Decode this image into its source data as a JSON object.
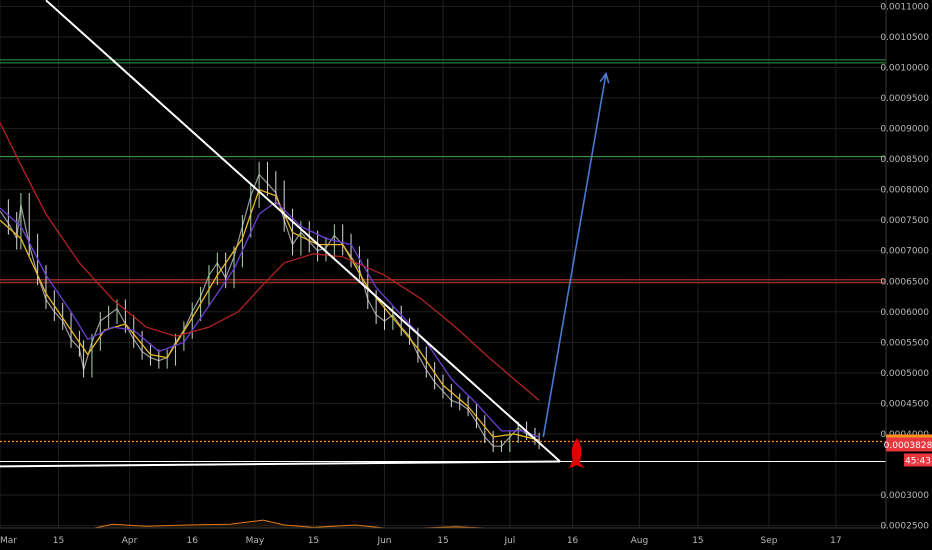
{
  "chart_data": {
    "type": "line",
    "y_axis": {
      "ylim": [
        0.00021,
        0.0011105
      ],
      "scale": "linear",
      "tick_labels": [
        "0.0011000",
        "0.0010500",
        "0.0010000",
        "0.0009500",
        "0.0009000",
        "0.0008500",
        "0.0008000",
        "0.0007500",
        "0.0007000",
        "0.0006500",
        "0.0006000",
        "0.0005500",
        "0.0005000",
        "0.0004500",
        "0.0004000",
        "0.0003000",
        "0.0002500"
      ],
      "tick_values": [
        0.0011,
        0.00105,
        0.001,
        0.00095,
        0.0009,
        0.00085,
        0.0008,
        0.00075,
        0.0007,
        0.00065,
        0.0006,
        0.00055,
        0.0005,
        0.00045,
        0.0004,
        0.0003,
        0.00025
      ],
      "grid": true
    },
    "x_axis": {
      "xlim": [
        "2018-03-01",
        "2018-09-29"
      ],
      "tick_labels": [
        "Mar",
        "15",
        "Apr",
        "16",
        "May",
        "15",
        "Jun",
        "15",
        "Jul",
        "16",
        "Aug",
        "15",
        "Sep",
        "17"
      ],
      "tick_dates": [
        "2018-03-01",
        "2018-03-15",
        "2018-04-01",
        "2018-04-16",
        "2018-05-01",
        "2018-05-15",
        "2018-06-01",
        "2018-06-15",
        "2018-07-01",
        "2018-07-16",
        "2018-08-01",
        "2018-08-15",
        "2018-09-01",
        "2018-09-17"
      ],
      "grid": true
    },
    "price_tags": [
      {
        "value": 0.0003877,
        "label": "0.0003877",
        "color": "#f7931a"
      },
      {
        "value": 0.0003828,
        "label": "0.0003828",
        "color": "#e8363c"
      },
      {
        "countdown": "45:43",
        "color": "#e8363c"
      }
    ],
    "horizontal_levels": [
      {
        "value": 0.00101,
        "color": "#2e9e3f",
        "double": true
      },
      {
        "value": 0.000854,
        "color": "#3ea84a",
        "double": false
      },
      {
        "value": 0.00065,
        "color": "#c0392b",
        "double": true
      },
      {
        "value": 0.0003877,
        "color": "#f7931a",
        "dotted": true
      },
      {
        "value": 0.000355,
        "color": "#ffffff",
        "double": false
      }
    ],
    "series": [
      {
        "style": "price",
        "color": "#9a9a9a",
        "points": [
          [
            "2018-03-01",
            0.000765
          ],
          [
            "2018-03-03",
            0.000745
          ],
          [
            "2018-03-05",
            0.00072
          ],
          [
            "2018-03-06",
            0.000775
          ],
          [
            "2018-03-08",
            0.00071
          ],
          [
            "2018-03-10",
            0.00066
          ],
          [
            "2018-03-12",
            0.00062
          ],
          [
            "2018-03-14",
            0.0006
          ],
          [
            "2018-03-16",
            0.000585
          ],
          [
            "2018-03-18",
            0.000555
          ],
          [
            "2018-03-20",
            0.00054
          ],
          [
            "2018-03-21",
            0.000505
          ],
          [
            "2018-03-23",
            0.00055
          ],
          [
            "2018-03-25",
            0.000585
          ],
          [
            "2018-03-27",
            0.000595
          ],
          [
            "2018-03-29",
            0.000605
          ],
          [
            "2018-03-31",
            0.00058
          ],
          [
            "2018-04-02",
            0.000555
          ],
          [
            "2018-04-04",
            0.000535
          ],
          [
            "2018-04-06",
            0.000525
          ],
          [
            "2018-04-08",
            0.00052
          ],
          [
            "2018-04-10",
            0.000525
          ],
          [
            "2018-04-12",
            0.00055
          ],
          [
            "2018-04-14",
            0.00057
          ],
          [
            "2018-04-16",
            0.0006
          ],
          [
            "2018-04-18",
            0.000625
          ],
          [
            "2018-04-20",
            0.00066
          ],
          [
            "2018-04-22",
            0.00068
          ],
          [
            "2018-04-24",
            0.000655
          ],
          [
            "2018-04-26",
            0.00069
          ],
          [
            "2018-04-28",
            0.00074
          ],
          [
            "2018-04-30",
            0.00079
          ],
          [
            "2018-05-02",
            0.000825
          ],
          [
            "2018-05-04",
            0.00081
          ],
          [
            "2018-05-06",
            0.000795
          ],
          [
            "2018-05-08",
            0.00075
          ],
          [
            "2018-05-10",
            0.00071
          ],
          [
            "2018-05-12",
            0.00073
          ],
          [
            "2018-05-14",
            0.000715
          ],
          [
            "2018-05-16",
            0.0007
          ],
          [
            "2018-05-18",
            0.000705
          ],
          [
            "2018-05-20",
            0.000725
          ],
          [
            "2018-05-22",
            0.00071
          ],
          [
            "2018-05-24",
            0.00069
          ],
          [
            "2018-05-26",
            0.00067
          ],
          [
            "2018-05-28",
            0.00062
          ],
          [
            "2018-05-30",
            0.000595
          ],
          [
            "2018-06-01",
            0.000585
          ],
          [
            "2018-06-03",
            0.000595
          ],
          [
            "2018-06-05",
            0.000575
          ],
          [
            "2018-06-07",
            0.00056
          ],
          [
            "2018-06-09",
            0.00053
          ],
          [
            "2018-06-11",
            0.000505
          ],
          [
            "2018-06-13",
            0.000485
          ],
          [
            "2018-06-15",
            0.00047
          ],
          [
            "2018-06-17",
            0.000455
          ],
          [
            "2018-06-19",
            0.00045
          ],
          [
            "2018-06-21",
            0.00044
          ],
          [
            "2018-06-23",
            0.00042
          ],
          [
            "2018-06-25",
            0.000395
          ],
          [
            "2018-06-27",
            0.00038
          ],
          [
            "2018-06-29",
            0.00038
          ],
          [
            "2018-07-01",
            0.000395
          ],
          [
            "2018-07-03",
            0.00041
          ],
          [
            "2018-07-05",
            0.0004
          ],
          [
            "2018-07-07",
            0.000392
          ],
          [
            "2018-07-08",
            0.000385
          ]
        ]
      },
      {
        "style": "moving-average",
        "color": "#e8b923",
        "points": [
          [
            "2018-03-01",
            0.00075
          ],
          [
            "2018-03-06",
            0.00072
          ],
          [
            "2018-03-12",
            0.00063
          ],
          [
            "2018-03-18",
            0.00057
          ],
          [
            "2018-03-22",
            0.00053
          ],
          [
            "2018-03-26",
            0.00057
          ],
          [
            "2018-03-31",
            0.00058
          ],
          [
            "2018-04-06",
            0.00053
          ],
          [
            "2018-04-10",
            0.000525
          ],
          [
            "2018-04-16",
            0.00059
          ],
          [
            "2018-04-22",
            0.00066
          ],
          [
            "2018-04-28",
            0.00072
          ],
          [
            "2018-05-02",
            0.0008
          ],
          [
            "2018-05-06",
            0.00079
          ],
          [
            "2018-05-10",
            0.00073
          ],
          [
            "2018-05-16",
            0.00071
          ],
          [
            "2018-05-22",
            0.00071
          ],
          [
            "2018-05-28",
            0.00064
          ],
          [
            "2018-06-03",
            0.00059
          ],
          [
            "2018-06-09",
            0.00054
          ],
          [
            "2018-06-15",
            0.00048
          ],
          [
            "2018-06-21",
            0.000445
          ],
          [
            "2018-06-27",
            0.000395
          ],
          [
            "2018-07-02",
            0.0004
          ],
          [
            "2018-07-08",
            0.00039
          ]
        ]
      },
      {
        "style": "moving-average",
        "color": "#6a3fd0",
        "points": [
          [
            "2018-03-01",
            0.00077
          ],
          [
            "2018-03-06",
            0.00074
          ],
          [
            "2018-03-12",
            0.00066
          ],
          [
            "2018-03-18",
            0.0006
          ],
          [
            "2018-03-22",
            0.000555
          ],
          [
            "2018-03-28",
            0.000575
          ],
          [
            "2018-04-02",
            0.00057
          ],
          [
            "2018-04-08",
            0.000535
          ],
          [
            "2018-04-14",
            0.00055
          ],
          [
            "2018-04-20",
            0.00061
          ],
          [
            "2018-04-26",
            0.00067
          ],
          [
            "2018-05-02",
            0.00076
          ],
          [
            "2018-05-06",
            0.00078
          ],
          [
            "2018-05-12",
            0.00074
          ],
          [
            "2018-05-18",
            0.00072
          ],
          [
            "2018-05-24",
            0.00071
          ],
          [
            "2018-05-30",
            0.00064
          ],
          [
            "2018-06-05",
            0.000595
          ],
          [
            "2018-06-11",
            0.00055
          ],
          [
            "2018-06-17",
            0.00049
          ],
          [
            "2018-06-23",
            0.00045
          ],
          [
            "2018-06-29",
            0.000405
          ],
          [
            "2018-07-04",
            0.000405
          ],
          [
            "2018-07-08",
            0.000395
          ]
        ]
      },
      {
        "style": "moving-average",
        "color": "#b22222",
        "points": [
          [
            "2018-03-01",
            0.00091
          ],
          [
            "2018-03-06",
            0.00084
          ],
          [
            "2018-03-12",
            0.00076
          ],
          [
            "2018-03-20",
            0.00068
          ],
          [
            "2018-03-28",
            0.00062
          ],
          [
            "2018-04-05",
            0.000575
          ],
          [
            "2018-04-12",
            0.00056
          ],
          [
            "2018-04-20",
            0.000575
          ],
          [
            "2018-04-27",
            0.0006
          ],
          [
            "2018-05-03",
            0.000645
          ],
          [
            "2018-05-08",
            0.00068
          ],
          [
            "2018-05-15",
            0.000695
          ],
          [
            "2018-05-22",
            0.00069
          ],
          [
            "2018-06-01",
            0.00066
          ],
          [
            "2018-06-10",
            0.00062
          ],
          [
            "2018-06-18",
            0.000575
          ],
          [
            "2018-06-26",
            0.000525
          ],
          [
            "2018-07-02",
            0.00049
          ],
          [
            "2018-07-08",
            0.000455
          ]
        ]
      },
      {
        "style": "volume",
        "color": "#e07a18",
        "y_range": [
          0.000235,
          0.000265
        ],
        "points": [
          [
            "2018-03-01",
            0.000241
          ],
          [
            "2018-03-10",
            0.000239
          ],
          [
            "2018-03-20",
            0.000241
          ],
          [
            "2018-03-28",
            0.000252
          ],
          [
            "2018-04-05",
            0.000249
          ],
          [
            "2018-04-15",
            0.000251
          ],
          [
            "2018-04-25",
            0.000252
          ],
          [
            "2018-05-03",
            0.000259
          ],
          [
            "2018-05-08",
            0.000251
          ],
          [
            "2018-05-15",
            0.000247
          ],
          [
            "2018-05-25",
            0.000251
          ],
          [
            "2018-06-01",
            0.000246
          ],
          [
            "2018-06-10",
            0.000246
          ],
          [
            "2018-06-18",
            0.000248
          ],
          [
            "2018-06-25",
            0.000246
          ],
          [
            "2018-07-02",
            0.000245
          ],
          [
            "2018-07-08",
            0.000244
          ]
        ]
      }
    ],
    "annotations": {
      "trend_line": {
        "from": [
          "2018-03-12",
          0.00111
        ],
        "to": [
          "2018-07-13",
          0.000355
        ],
        "color": "#ffffff"
      },
      "support_line": {
        "from": [
          "2018-03-01",
          0.000347
        ],
        "to": [
          "2018-07-13",
          0.000355
        ],
        "color": "#ffffff"
      },
      "target_arrow": {
        "from": [
          "2018-07-09",
          0.000395
        ],
        "to": [
          "2018-07-24",
          0.00099
        ],
        "color": "#4a78d4"
      },
      "rocket_marker": {
        "at": [
          "2018-07-17",
          0.00037
        ],
        "color": "#e00000"
      }
    }
  }
}
